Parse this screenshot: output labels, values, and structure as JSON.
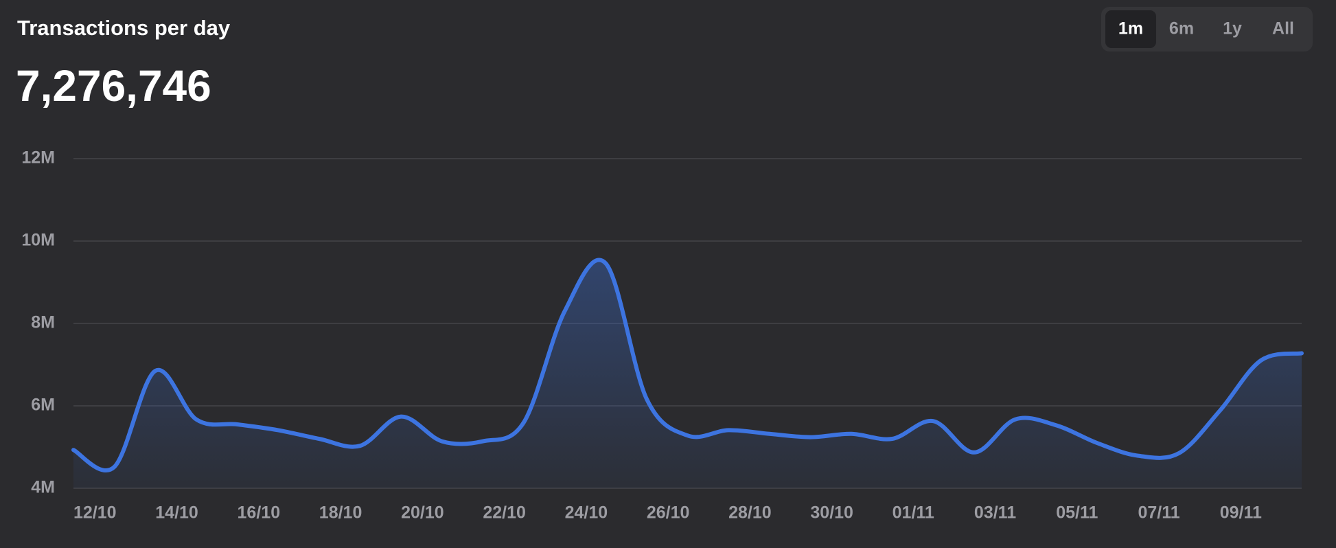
{
  "chart_data": {
    "type": "line",
    "title": "Transactions per day",
    "headline": "7,276,746",
    "range_options": [
      "1m",
      "6m",
      "1y",
      "All"
    ],
    "selected_range": "1m",
    "categories": [
      "12/10",
      null,
      "14/10",
      null,
      "16/10",
      null,
      "18/10",
      null,
      "20/10",
      null,
      "22/10",
      null,
      "24/10",
      null,
      "26/10",
      null,
      "28/10",
      null,
      "30/10",
      null,
      "01/11",
      null,
      "03/11",
      null,
      "05/11",
      null,
      "07/11",
      null,
      "09/11",
      null,
      null
    ],
    "series": [
      {
        "color": "#3d74e0",
        "values": [
          4930000,
          4520000,
          6850000,
          5670000,
          5550000,
          5410000,
          5200000,
          5030000,
          5740000,
          5140000,
          5140000,
          5600000,
          8300000,
          9460000,
          6170000,
          5280000,
          5410000,
          5320000,
          5240000,
          5320000,
          5200000,
          5630000,
          4870000,
          5670000,
          5530000,
          5100000,
          4790000,
          4850000,
          5880000,
          7100000,
          7276746
        ]
      }
    ],
    "ylim": [
      4000000,
      12000000
    ],
    "yticks": [
      {
        "value": 4000000,
        "label": "4M"
      },
      {
        "value": 6000000,
        "label": "6M"
      },
      {
        "value": 8000000,
        "label": "8M"
      },
      {
        "value": 10000000,
        "label": "10M"
      },
      {
        "value": 12000000,
        "label": "12M"
      }
    ],
    "grid": true
  }
}
